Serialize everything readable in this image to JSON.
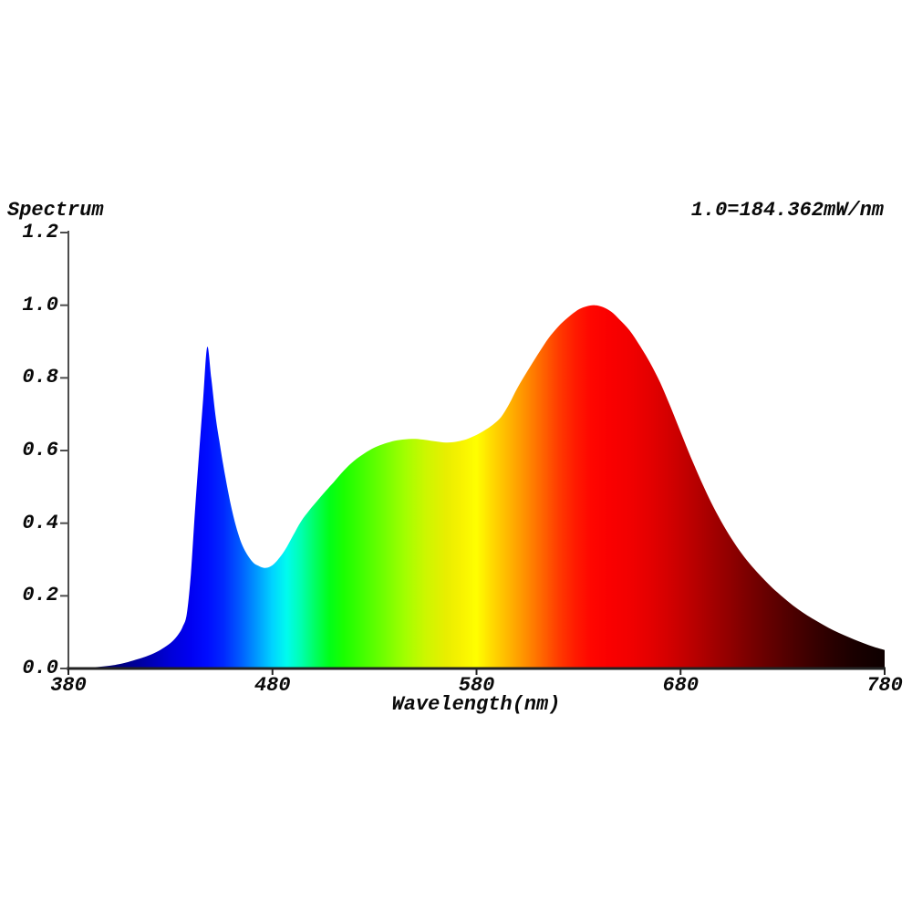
{
  "header": {
    "title": "Spectrum",
    "scale_note": "1.0=184.362mW/nm"
  },
  "chart_data": {
    "type": "area",
    "title": "Spectrum",
    "subtitle": "",
    "xlabel": "Wavelength(nm)",
    "ylabel": "",
    "xlim": [
      380,
      780
    ],
    "ylim": [
      0,
      1.2
    ],
    "grid": false,
    "legend": "none",
    "x_tick_labels": [
      "380",
      "480",
      "580",
      "680",
      "780"
    ],
    "x_ticks": [
      380,
      480,
      580,
      680,
      780
    ],
    "y_tick_labels": [
      "0.0",
      "0.2",
      "0.4",
      "0.6",
      "0.8",
      "1.0",
      "1.2"
    ],
    "y_ticks": [
      0.0,
      0.2,
      0.4,
      0.6,
      0.8,
      1.0,
      1.2
    ],
    "normalization_note": "1.0=184.362mW/nm",
    "peaks": [
      {
        "wavelength": 448,
        "value": 0.885,
        "label": "blue peak"
      },
      {
        "wavelength": 475,
        "value": 0.277,
        "label": "blue-cyan valley"
      },
      {
        "wavelength": 548,
        "value": 0.632,
        "label": "green-yellow shoulder"
      },
      {
        "wavelength": 638,
        "value": 1.0,
        "label": "red peak"
      }
    ],
    "series": [
      {
        "name": "spectral power distribution (relative)",
        "points": [
          [
            380,
            0.001
          ],
          [
            388,
            0.002
          ],
          [
            396,
            0.005
          ],
          [
            402,
            0.009
          ],
          [
            408,
            0.016
          ],
          [
            413,
            0.024
          ],
          [
            418,
            0.033
          ],
          [
            423,
            0.045
          ],
          [
            427,
            0.058
          ],
          [
            431,
            0.075
          ],
          [
            434,
            0.095
          ],
          [
            436,
            0.115
          ],
          [
            438,
            0.15
          ],
          [
            440,
            0.26
          ],
          [
            442,
            0.43
          ],
          [
            444,
            0.59
          ],
          [
            446,
            0.74
          ],
          [
            448,
            0.885
          ],
          [
            450,
            0.8
          ],
          [
            452,
            0.7
          ],
          [
            454,
            0.625
          ],
          [
            457,
            0.525
          ],
          [
            460,
            0.44
          ],
          [
            463,
            0.375
          ],
          [
            466,
            0.33
          ],
          [
            470,
            0.295
          ],
          [
            473,
            0.283
          ],
          [
            476,
            0.277
          ],
          [
            479,
            0.281
          ],
          [
            482,
            0.295
          ],
          [
            486,
            0.325
          ],
          [
            490,
            0.365
          ],
          [
            494,
            0.405
          ],
          [
            498,
            0.435
          ],
          [
            502,
            0.462
          ],
          [
            506,
            0.488
          ],
          [
            510,
            0.513
          ],
          [
            515,
            0.545
          ],
          [
            520,
            0.572
          ],
          [
            525,
            0.592
          ],
          [
            530,
            0.608
          ],
          [
            535,
            0.619
          ],
          [
            540,
            0.627
          ],
          [
            545,
            0.631
          ],
          [
            550,
            0.632
          ],
          [
            555,
            0.629
          ],
          [
            560,
            0.625
          ],
          [
            565,
            0.622
          ],
          [
            570,
            0.624
          ],
          [
            575,
            0.631
          ],
          [
            580,
            0.643
          ],
          [
            584,
            0.656
          ],
          [
            588,
            0.671
          ],
          [
            592,
            0.692
          ],
          [
            596,
            0.728
          ],
          [
            600,
            0.772
          ],
          [
            605,
            0.819
          ],
          [
            610,
            0.864
          ],
          [
            615,
            0.907
          ],
          [
            620,
            0.941
          ],
          [
            625,
            0.967
          ],
          [
            630,
            0.988
          ],
          [
            634,
            0.997
          ],
          [
            638,
            1.0
          ],
          [
            642,
            0.995
          ],
          [
            646,
            0.982
          ],
          [
            650,
            0.961
          ],
          [
            655,
            0.931
          ],
          [
            660,
            0.889
          ],
          [
            665,
            0.842
          ],
          [
            670,
            0.787
          ],
          [
            675,
            0.721
          ],
          [
            680,
            0.651
          ],
          [
            685,
            0.582
          ],
          [
            690,
            0.517
          ],
          [
            695,
            0.457
          ],
          [
            700,
            0.404
          ],
          [
            705,
            0.357
          ],
          [
            710,
            0.316
          ],
          [
            715,
            0.281
          ],
          [
            720,
            0.25
          ],
          [
            725,
            0.222
          ],
          [
            730,
            0.197
          ],
          [
            735,
            0.174
          ],
          [
            740,
            0.154
          ],
          [
            745,
            0.136
          ],
          [
            750,
            0.12
          ],
          [
            755,
            0.105
          ],
          [
            760,
            0.092
          ],
          [
            765,
            0.08
          ],
          [
            770,
            0.069
          ],
          [
            775,
            0.059
          ],
          [
            780,
            0.051
          ]
        ]
      }
    ],
    "gradient_stops": [
      [
        380,
        "#000038"
      ],
      [
        400,
        "#000070"
      ],
      [
        415,
        "#0000a0"
      ],
      [
        430,
        "#0000d8"
      ],
      [
        440,
        "#0000f2"
      ],
      [
        448,
        "#000cff"
      ],
      [
        456,
        "#0028ff"
      ],
      [
        464,
        "#005aff"
      ],
      [
        472,
        "#0096ff"
      ],
      [
        480,
        "#00d4ff"
      ],
      [
        487,
        "#00fbee"
      ],
      [
        494,
        "#00ffb0"
      ],
      [
        501,
        "#00ff60"
      ],
      [
        508,
        "#00ff18"
      ],
      [
        515,
        "#1aff00"
      ],
      [
        525,
        "#46ff00"
      ],
      [
        535,
        "#73ff00"
      ],
      [
        545,
        "#a2ff00"
      ],
      [
        555,
        "#ccf700"
      ],
      [
        565,
        "#e8ee00"
      ],
      [
        573,
        "#f8f300"
      ],
      [
        580,
        "#ffff00"
      ],
      [
        588,
        "#ffd800"
      ],
      [
        596,
        "#ffb400"
      ],
      [
        604,
        "#ff8f00"
      ],
      [
        612,
        "#ff6600"
      ],
      [
        620,
        "#ff3c00"
      ],
      [
        628,
        "#ff1c00"
      ],
      [
        636,
        "#ff0600"
      ],
      [
        645,
        "#fa0000"
      ],
      [
        655,
        "#f20000"
      ],
      [
        665,
        "#e40000"
      ],
      [
        675,
        "#d20000"
      ],
      [
        685,
        "#bc0000"
      ],
      [
        695,
        "#a50000"
      ],
      [
        705,
        "#8e0000"
      ],
      [
        715,
        "#770000"
      ],
      [
        725,
        "#610000"
      ],
      [
        735,
        "#4c0000"
      ],
      [
        745,
        "#390000"
      ],
      [
        755,
        "#280000"
      ],
      [
        765,
        "#1a0000"
      ],
      [
        780,
        "#0e0000"
      ]
    ],
    "colors": {
      "background": "#ffffff",
      "text": "#0a0a0a",
      "y_axis": "#4d4d4d",
      "x_axis": "#222222"
    }
  }
}
